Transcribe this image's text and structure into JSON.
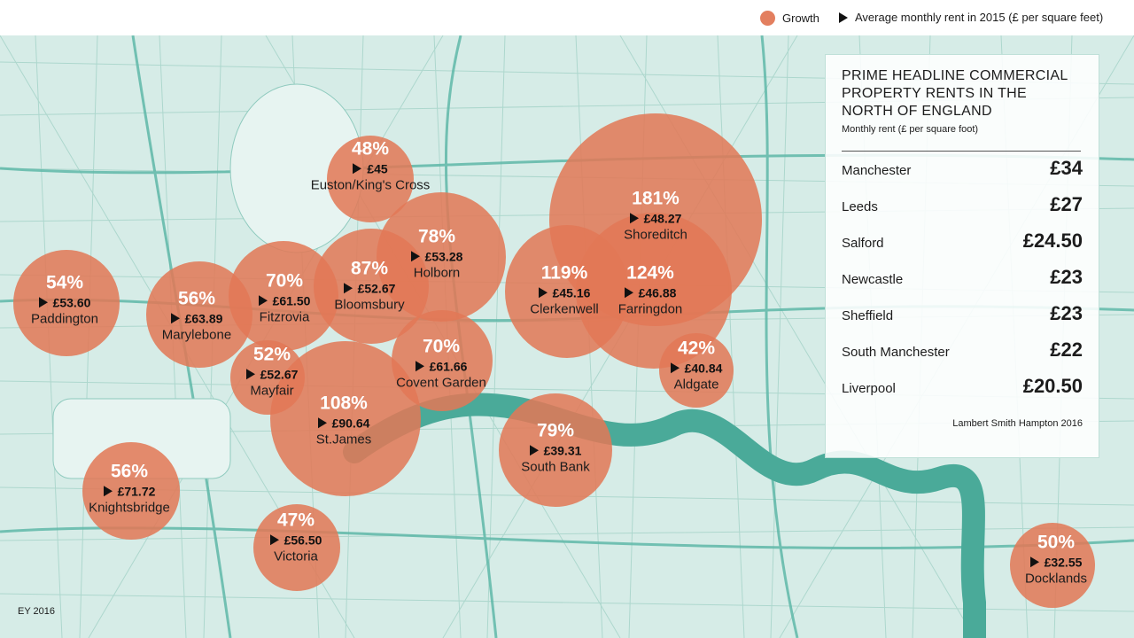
{
  "legend": {
    "growth_label": "Growth",
    "rent_label": "Average monthly rent in 2015 (£ per square feet)",
    "growth_color": "#e37f5f"
  },
  "areas": [
    {
      "name": "Euston/King's Cross",
      "growth": "48%",
      "rent": "£45"
    },
    {
      "name": "Paddington",
      "growth": "54%",
      "rent": "£53.60"
    },
    {
      "name": "Marylebone",
      "growth": "56%",
      "rent": "£63.89"
    },
    {
      "name": "Fitzrovia",
      "growth": "70%",
      "rent": "£61.50"
    },
    {
      "name": "Bloomsbury",
      "growth": "87%",
      "rent": "£52.67"
    },
    {
      "name": "Holborn",
      "growth": "78%",
      "rent": "£53.28"
    },
    {
      "name": "Mayfair",
      "growth": "52%",
      "rent": "£52.67"
    },
    {
      "name": "Covent Garden",
      "growth": "70%",
      "rent": "£61.66"
    },
    {
      "name": "St.James",
      "growth": "108%",
      "rent": "£90.64"
    },
    {
      "name": "Shoreditch",
      "growth": "181%",
      "rent": "£48.27"
    },
    {
      "name": "Clerkenwell",
      "growth": "119%",
      "rent": "£45.16"
    },
    {
      "name": "Farringdon",
      "growth": "124%",
      "rent": "£46.88"
    },
    {
      "name": "Aldgate",
      "growth": "42%",
      "rent": "£40.84"
    },
    {
      "name": "South Bank",
      "growth": "79%",
      "rent": "£39.31"
    },
    {
      "name": "Knightsbridge",
      "growth": "56%",
      "rent": "£71.72"
    },
    {
      "name": "Victoria",
      "growth": "47%",
      "rent": "£56.50"
    },
    {
      "name": "Docklands",
      "growth": "50%",
      "rent": "£32.55"
    }
  ],
  "panel": {
    "title": "PRIME HEADLINE COMMERCIAL PROPERTY RENTS IN THE NORTH OF ENGLAND",
    "subtitle": "Monthly rent (£ per square foot)",
    "rows": [
      {
        "city": "Manchester",
        "value": "£34"
      },
      {
        "city": "Leeds",
        "value": "£27"
      },
      {
        "city": "Salford",
        "value": "£24.50"
      },
      {
        "city": "Newcastle",
        "value": "£23"
      },
      {
        "city": "Sheffield",
        "value": "£23"
      },
      {
        "city": "South Manchester",
        "value": "£22"
      },
      {
        "city": "Liverpool",
        "value": "£20.50"
      }
    ],
    "source": "Lambert Smith Hampton 2016"
  },
  "credit": "EY 2016"
}
